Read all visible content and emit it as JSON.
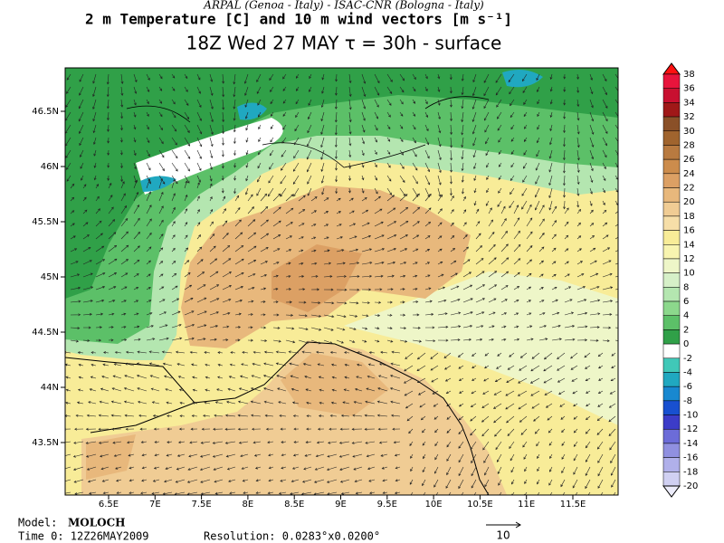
{
  "header": {
    "institutions": "ARPAL (Genoa - Italy)  -  ISAC-CNR (Bologna - Italy)",
    "title": "2 m Temperature [C] and 10 m wind vectors [m s⁻¹]",
    "subtitle": "18Z Wed 27 MAY  τ = 30h  -  surface"
  },
  "map": {
    "x_labels": [
      "6.5E",
      "7E",
      "7.5E",
      "8E",
      "8.5E",
      "9E",
      "9.5E",
      "10E",
      "10.5E",
      "11E",
      "11.5E"
    ],
    "y_labels": [
      "46.5N",
      "46N",
      "45.5N",
      "45N",
      "44.5N",
      "44N",
      "43.5N"
    ]
  },
  "colorbar": {
    "labels": [
      "38",
      "36",
      "34",
      "32",
      "30",
      "28",
      "26",
      "24",
      "22",
      "20",
      "18",
      "16",
      "14",
      "12",
      "10",
      "8",
      "6",
      "4",
      "2",
      "0",
      "-2",
      "-4",
      "-6",
      "-8",
      "-10",
      "-12",
      "-14",
      "-16",
      "-18",
      "-20"
    ],
    "colors": [
      "#ff1010",
      "#e8143c",
      "#c81030",
      "#a01818",
      "#8a5028",
      "#a0642e",
      "#b87a40",
      "#cc8c4c",
      "#dca064",
      "#e8b87c",
      "#f0cc94",
      "#f6dea8",
      "#f8ec98",
      "#f8f4b0",
      "#eef6c8",
      "#d6f0c8",
      "#b4e6b0",
      "#8cd88c",
      "#5cc068",
      "#30a048",
      "#ffffff",
      "#40c8b8",
      "#20a8c0",
      "#1888d0",
      "#1850d0",
      "#3c3cc8",
      "#6c6cd8",
      "#9090e0",
      "#b0b0ea",
      "#d0d0f2",
      "#ececfa"
    ]
  },
  "footer": {
    "model_label": "Model:",
    "model": "MOLOCH",
    "time": "Time 0: 12Z26MAY2009",
    "resolution": "Resolution: 0.0283°x0.0200°",
    "reference_vector": "10"
  }
}
